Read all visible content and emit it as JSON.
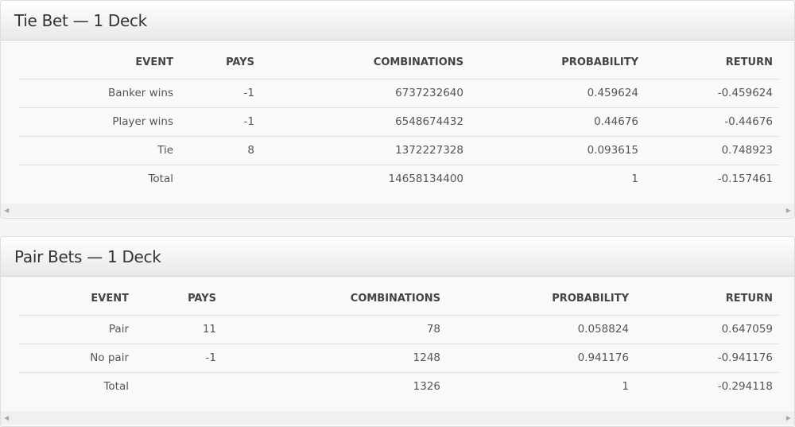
{
  "tables": [
    {
      "title": "Tie Bet — 1 Deck",
      "headers": [
        "EVENT",
        "PAYS",
        "COMBINATIONS",
        "PROBABILITY",
        "RETURN"
      ],
      "rows": [
        [
          "Banker wins",
          "-1",
          "6737232640",
          "0.459624",
          "-0.459624"
        ],
        [
          "Player wins",
          "-1",
          "6548674432",
          "0.44676",
          "-0.44676"
        ],
        [
          "Tie",
          "8",
          "1372227328",
          "0.093615",
          "0.748923"
        ],
        [
          "Total",
          "",
          "14658134400",
          "1",
          "-0.157461"
        ]
      ]
    },
    {
      "title": "Pair Bets — 1 Deck",
      "headers": [
        "EVENT",
        "PAYS",
        "COMBINATIONS",
        "PROBABILITY",
        "RETURN"
      ],
      "rows": [
        [
          "Pair",
          "11",
          "78",
          "0.058824",
          "0.647059"
        ],
        [
          "No pair",
          "-1",
          "1248",
          "0.941176",
          "-0.941176"
        ],
        [
          "Total",
          "",
          "1326",
          "1",
          "-0.294118"
        ]
      ]
    }
  ]
}
